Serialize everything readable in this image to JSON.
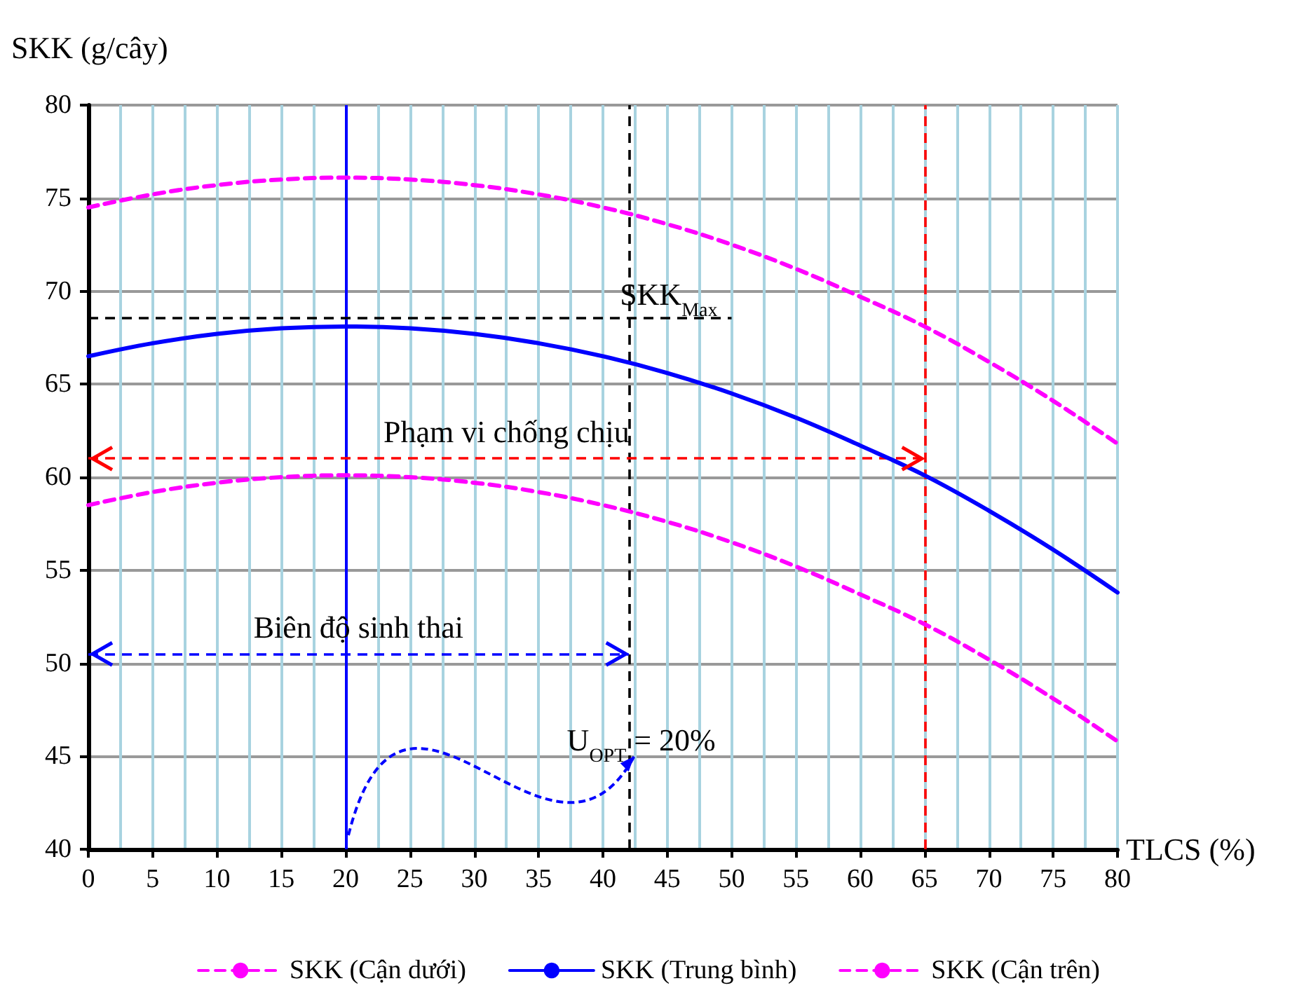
{
  "chart_data": {
    "type": "line",
    "xlabel": "TLCS (%)",
    "ylabel": "SKK (g/cây)",
    "x": [
      0,
      5,
      10,
      15,
      20,
      25,
      30,
      35,
      40,
      45,
      50,
      55,
      60,
      65,
      70,
      75,
      80
    ],
    "series": [
      {
        "name": "SKK (Cận dưới)",
        "color": "#ff00ff",
        "line_style": "dashed",
        "values": [
          58.5,
          59.2,
          59.7,
          60.0,
          60.1,
          60.0,
          59.7,
          59.2,
          58.5,
          57.6,
          56.5,
          55.2,
          53.7,
          52.1,
          50.2,
          48.1,
          45.8
        ]
      },
      {
        "name": "SKK (Trung bình)",
        "color": "#0000ff",
        "line_style": "solid",
        "values": [
          66.5,
          67.2,
          67.7,
          68.0,
          68.1,
          68.0,
          67.7,
          67.2,
          66.5,
          65.6,
          64.5,
          63.2,
          61.7,
          60.1,
          58.2,
          56.1,
          53.8
        ]
      },
      {
        "name": "SKK (Cận trên)",
        "color": "#ff00ff",
        "line_style": "dashed",
        "values": [
          74.5,
          75.2,
          75.7,
          76.0,
          76.1,
          76.0,
          75.7,
          75.2,
          74.5,
          73.6,
          72.5,
          71.2,
          69.7,
          68.1,
          66.2,
          64.1,
          61.8
        ]
      }
    ],
    "xlim": [
      0,
      80
    ],
    "xticks": [
      0,
      5,
      10,
      15,
      20,
      25,
      30,
      35,
      40,
      45,
      50,
      55,
      60,
      65,
      70,
      75,
      80
    ],
    "ylim": [
      40,
      80
    ],
    "yticks": [
      40,
      45,
      50,
      55,
      60,
      65,
      70,
      75,
      80
    ],
    "ref_lines": [
      {
        "axis": "x",
        "value": 20,
        "color": "#0000ff",
        "line_style": "solid"
      },
      {
        "axis": "x",
        "value": 42,
        "color": "#000000",
        "line_style": "dashed"
      },
      {
        "axis": "x",
        "value": 65,
        "color": "#ff0000",
        "line_style": "dashed"
      },
      {
        "axis": "y",
        "value": 68.6,
        "label": "SKK$_{Max}$",
        "color": "#000000",
        "line_style": "dashed"
      },
      {
        "axis": "y",
        "value": 61,
        "label": "Phạm vi chống chịu",
        "color": "#ff0000",
        "line_style": "dashed"
      },
      {
        "axis": "y",
        "value": 50.5,
        "label": "Biên độ sinh thai",
        "color": "#0000ff",
        "line_style": "dashed"
      }
    ],
    "annotations": [
      {
        "text": "U$_{OPT}$ = 20%",
        "x": 42,
        "y": 45
      }
    ],
    "grid": true,
    "legend": "bottom",
    "marker": "none"
  }
}
